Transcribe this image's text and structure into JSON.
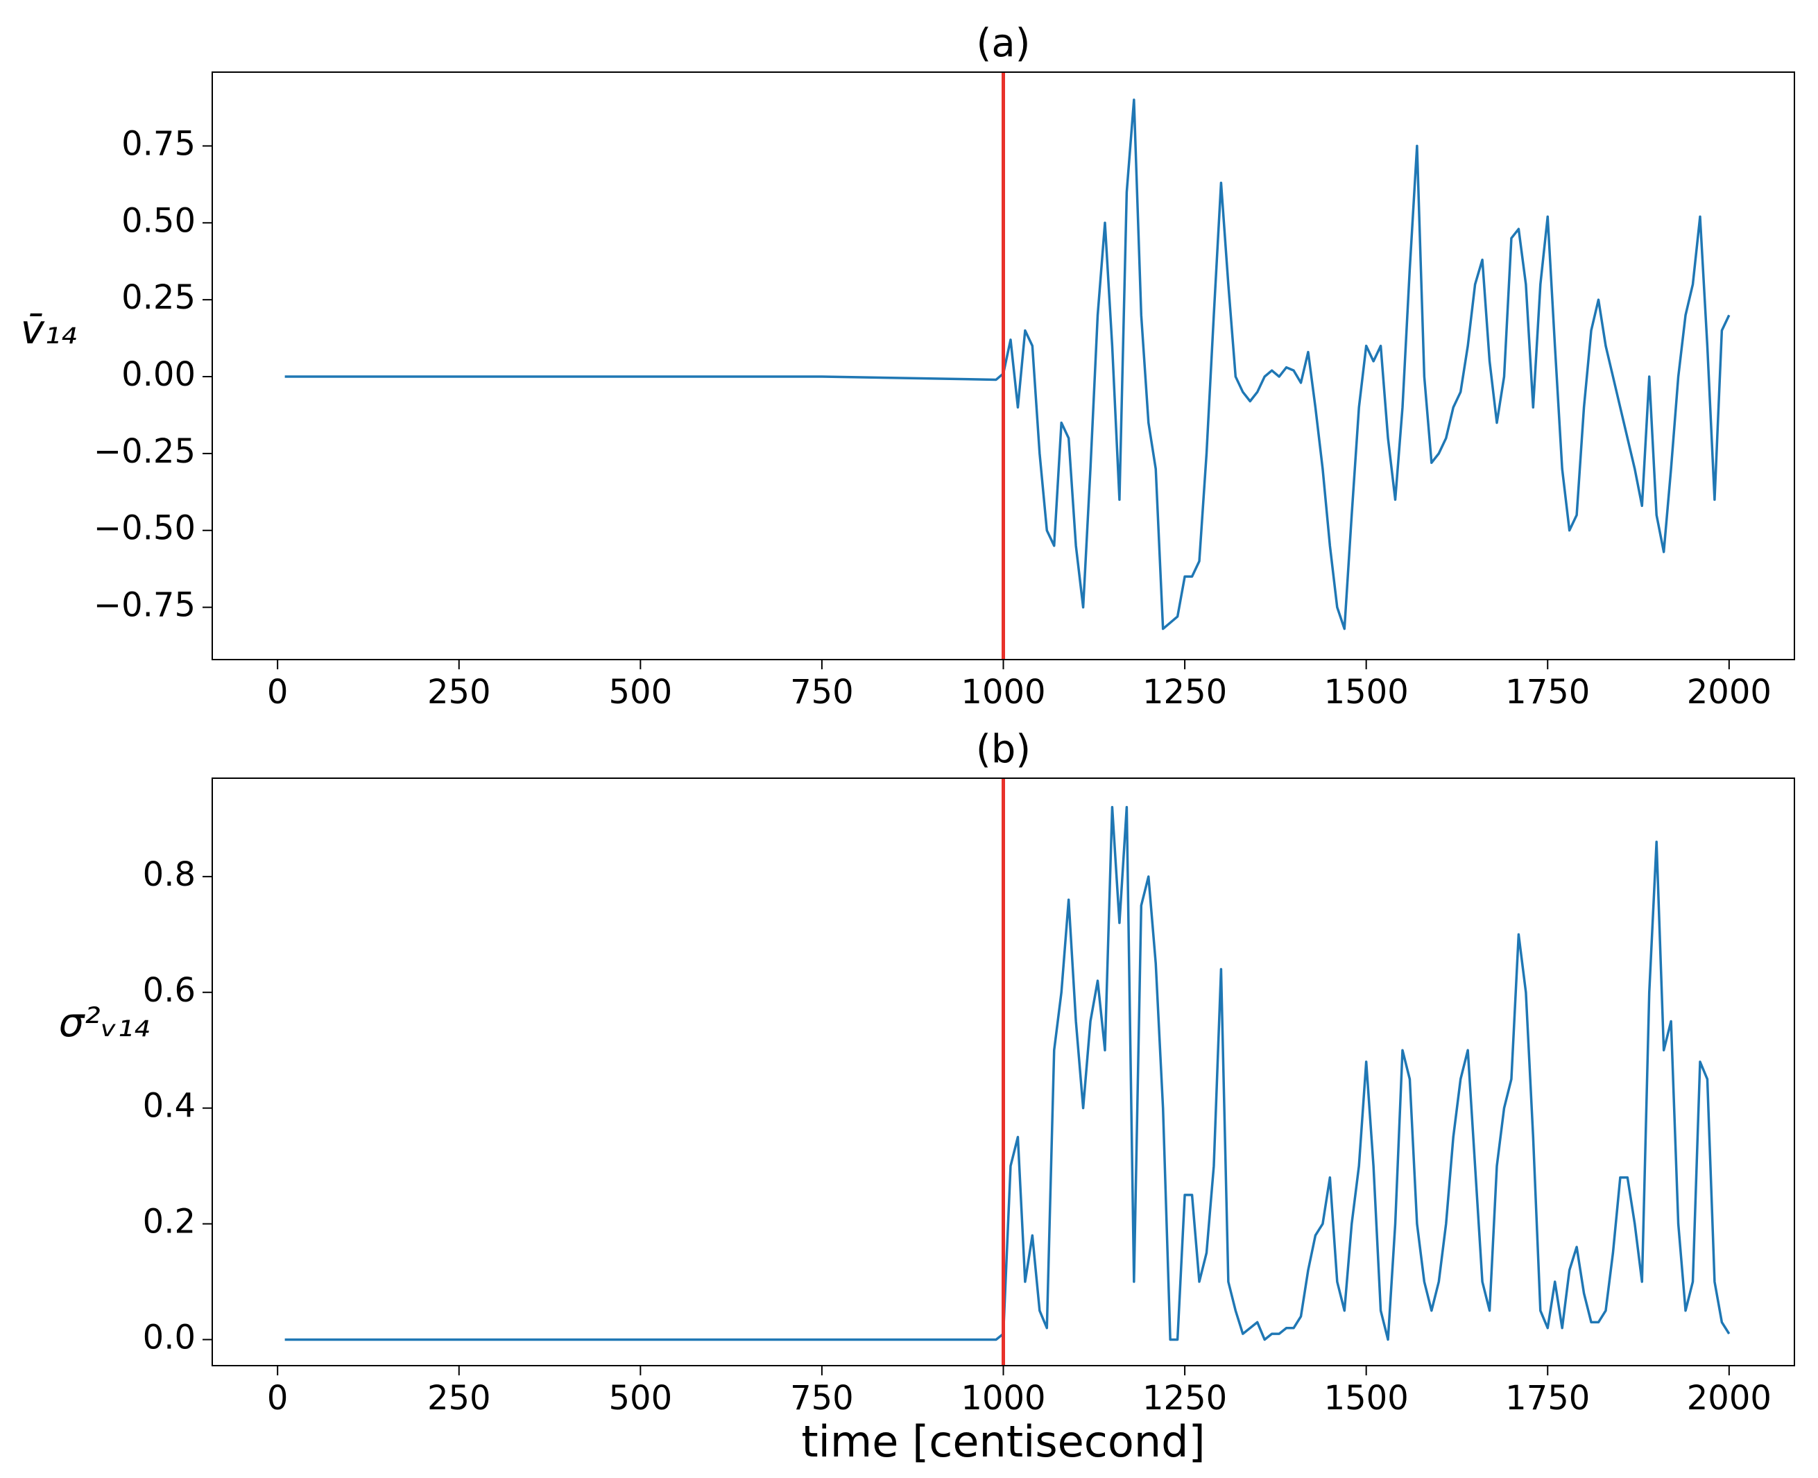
{
  "chart_data": [
    {
      "type": "line",
      "title": "(a)",
      "ylabel": "v̄₁₄",
      "x": [
        10,
        250,
        500,
        750,
        990,
        1000,
        1010,
        1020,
        1030,
        1040,
        1050,
        1060,
        1070,
        1080,
        1090,
        1100,
        1110,
        1120,
        1130,
        1140,
        1150,
        1160,
        1170,
        1180,
        1190,
        1200,
        1210,
        1220,
        1230,
        1240,
        1250,
        1260,
        1270,
        1280,
        1290,
        1300,
        1310,
        1320,
        1330,
        1340,
        1350,
        1360,
        1370,
        1380,
        1390,
        1400,
        1410,
        1420,
        1430,
        1440,
        1450,
        1460,
        1470,
        1480,
        1490,
        1500,
        1510,
        1520,
        1530,
        1540,
        1550,
        1560,
        1570,
        1580,
        1590,
        1600,
        1610,
        1620,
        1630,
        1640,
        1650,
        1660,
        1670,
        1680,
        1690,
        1700,
        1710,
        1720,
        1730,
        1740,
        1750,
        1760,
        1770,
        1780,
        1790,
        1800,
        1810,
        1820,
        1830,
        1840,
        1850,
        1860,
        1870,
        1880,
        1890,
        1900,
        1910,
        1920,
        1930,
        1940,
        1950,
        1960,
        1970,
        1980,
        1990,
        2000
      ],
      "values": [
        0.0,
        0.0,
        0.0,
        0.0,
        -0.01,
        0.01,
        0.12,
        -0.1,
        0.15,
        0.1,
        -0.25,
        -0.5,
        -0.55,
        -0.15,
        -0.2,
        -0.55,
        -0.75,
        -0.3,
        0.2,
        0.5,
        0.1,
        -0.4,
        0.6,
        0.9,
        0.2,
        -0.15,
        -0.3,
        -0.82,
        -0.8,
        -0.78,
        -0.65,
        -0.65,
        -0.6,
        -0.25,
        0.2,
        0.63,
        0.3,
        0.0,
        -0.05,
        -0.08,
        -0.05,
        0.0,
        0.02,
        0.0,
        0.03,
        0.02,
        -0.02,
        0.08,
        -0.1,
        -0.3,
        -0.55,
        -0.75,
        -0.82,
        -0.45,
        -0.1,
        0.1,
        0.05,
        0.1,
        -0.2,
        -0.4,
        -0.1,
        0.35,
        0.75,
        0.0,
        -0.28,
        -0.25,
        -0.2,
        -0.1,
        -0.05,
        0.1,
        0.3,
        0.38,
        0.05,
        -0.15,
        0.0,
        0.45,
        0.48,
        0.3,
        -0.1,
        0.3,
        0.52,
        0.1,
        -0.3,
        -0.5,
        -0.45,
        -0.1,
        0.15,
        0.25,
        0.1,
        0.0,
        -0.1,
        -0.2,
        -0.3,
        -0.42,
        0.0,
        -0.45,
        -0.57,
        -0.3,
        0.0,
        0.2,
        0.3,
        0.52,
        0.1,
        -0.4,
        0.15,
        0.2
      ],
      "color": "#1f77b4",
      "vline": 1000,
      "vline_color": "#e8312a",
      "xlim": [
        -90,
        2090
      ],
      "xticks": [
        0,
        250,
        500,
        750,
        1000,
        1250,
        1500,
        1750,
        2000
      ],
      "ylim": [
        -0.92,
        0.99
      ],
      "yticks": [
        {
          "value": -0.75,
          "label": "−0.75"
        },
        {
          "value": -0.5,
          "label": "−0.50"
        },
        {
          "value": -0.25,
          "label": "−0.25"
        },
        {
          "value": 0,
          "label": "0.00"
        },
        0.25,
        {
          "value": 0.5,
          "label": "0.50"
        },
        0.75
      ]
    },
    {
      "type": "line",
      "title": "(b)",
      "ylabel": "σ²ᵥ₁₄",
      "xlabel": "time [centisecond]",
      "x": [
        10,
        250,
        500,
        750,
        990,
        1000,
        1010,
        1020,
        1030,
        1040,
        1050,
        1060,
        1070,
        1080,
        1090,
        1100,
        1110,
        1120,
        1130,
        1140,
        1150,
        1160,
        1170,
        1180,
        1190,
        1200,
        1210,
        1220,
        1230,
        1240,
        1250,
        1260,
        1270,
        1280,
        1290,
        1300,
        1310,
        1320,
        1330,
        1340,
        1350,
        1360,
        1370,
        1380,
        1390,
        1400,
        1410,
        1420,
        1430,
        1440,
        1450,
        1460,
        1470,
        1480,
        1490,
        1500,
        1510,
        1520,
        1530,
        1540,
        1550,
        1560,
        1570,
        1580,
        1590,
        1600,
        1610,
        1620,
        1630,
        1640,
        1650,
        1660,
        1670,
        1680,
        1690,
        1700,
        1710,
        1720,
        1730,
        1740,
        1750,
        1760,
        1770,
        1780,
        1790,
        1800,
        1810,
        1820,
        1830,
        1840,
        1850,
        1860,
        1870,
        1880,
        1890,
        1900,
        1910,
        1920,
        1930,
        1940,
        1950,
        1960,
        1970,
        1980,
        1990,
        2000
      ],
      "values": [
        0.0,
        0.0,
        0.0,
        0.0,
        0.0,
        0.01,
        0.3,
        0.35,
        0.1,
        0.18,
        0.05,
        0.02,
        0.5,
        0.6,
        0.76,
        0.55,
        0.4,
        0.55,
        0.62,
        0.5,
        0.92,
        0.72,
        0.92,
        0.1,
        0.75,
        0.8,
        0.65,
        0.4,
        0.0,
        0.0,
        0.25,
        0.25,
        0.1,
        0.15,
        0.3,
        0.64,
        0.1,
        0.05,
        0.01,
        0.02,
        0.03,
        0.0,
        0.01,
        0.01,
        0.02,
        0.02,
        0.04,
        0.12,
        0.18,
        0.2,
        0.28,
        0.1,
        0.05,
        0.2,
        0.3,
        0.48,
        0.3,
        0.05,
        0.0,
        0.2,
        0.5,
        0.45,
        0.2,
        0.1,
        0.05,
        0.1,
        0.2,
        0.35,
        0.45,
        0.5,
        0.3,
        0.1,
        0.05,
        0.3,
        0.4,
        0.45,
        0.7,
        0.6,
        0.35,
        0.05,
        0.02,
        0.1,
        0.02,
        0.12,
        0.16,
        0.08,
        0.03,
        0.03,
        0.05,
        0.15,
        0.28,
        0.28,
        0.2,
        0.1,
        0.6,
        0.86,
        0.5,
        0.55,
        0.2,
        0.05,
        0.1,
        0.48,
        0.45,
        0.1,
        0.03,
        0.01
      ],
      "color": "#1f77b4",
      "vline": 1000,
      "vline_color": "#e8312a",
      "xlim": [
        -90,
        2090
      ],
      "xticks": [
        0,
        250,
        500,
        750,
        1000,
        1250,
        1500,
        1750,
        2000
      ],
      "ylim": [
        -0.045,
        0.97
      ],
      "yticks": [
        {
          "value": 0,
          "label": "0.0"
        },
        0.2,
        0.4,
        0.6,
        0.8
      ]
    }
  ]
}
